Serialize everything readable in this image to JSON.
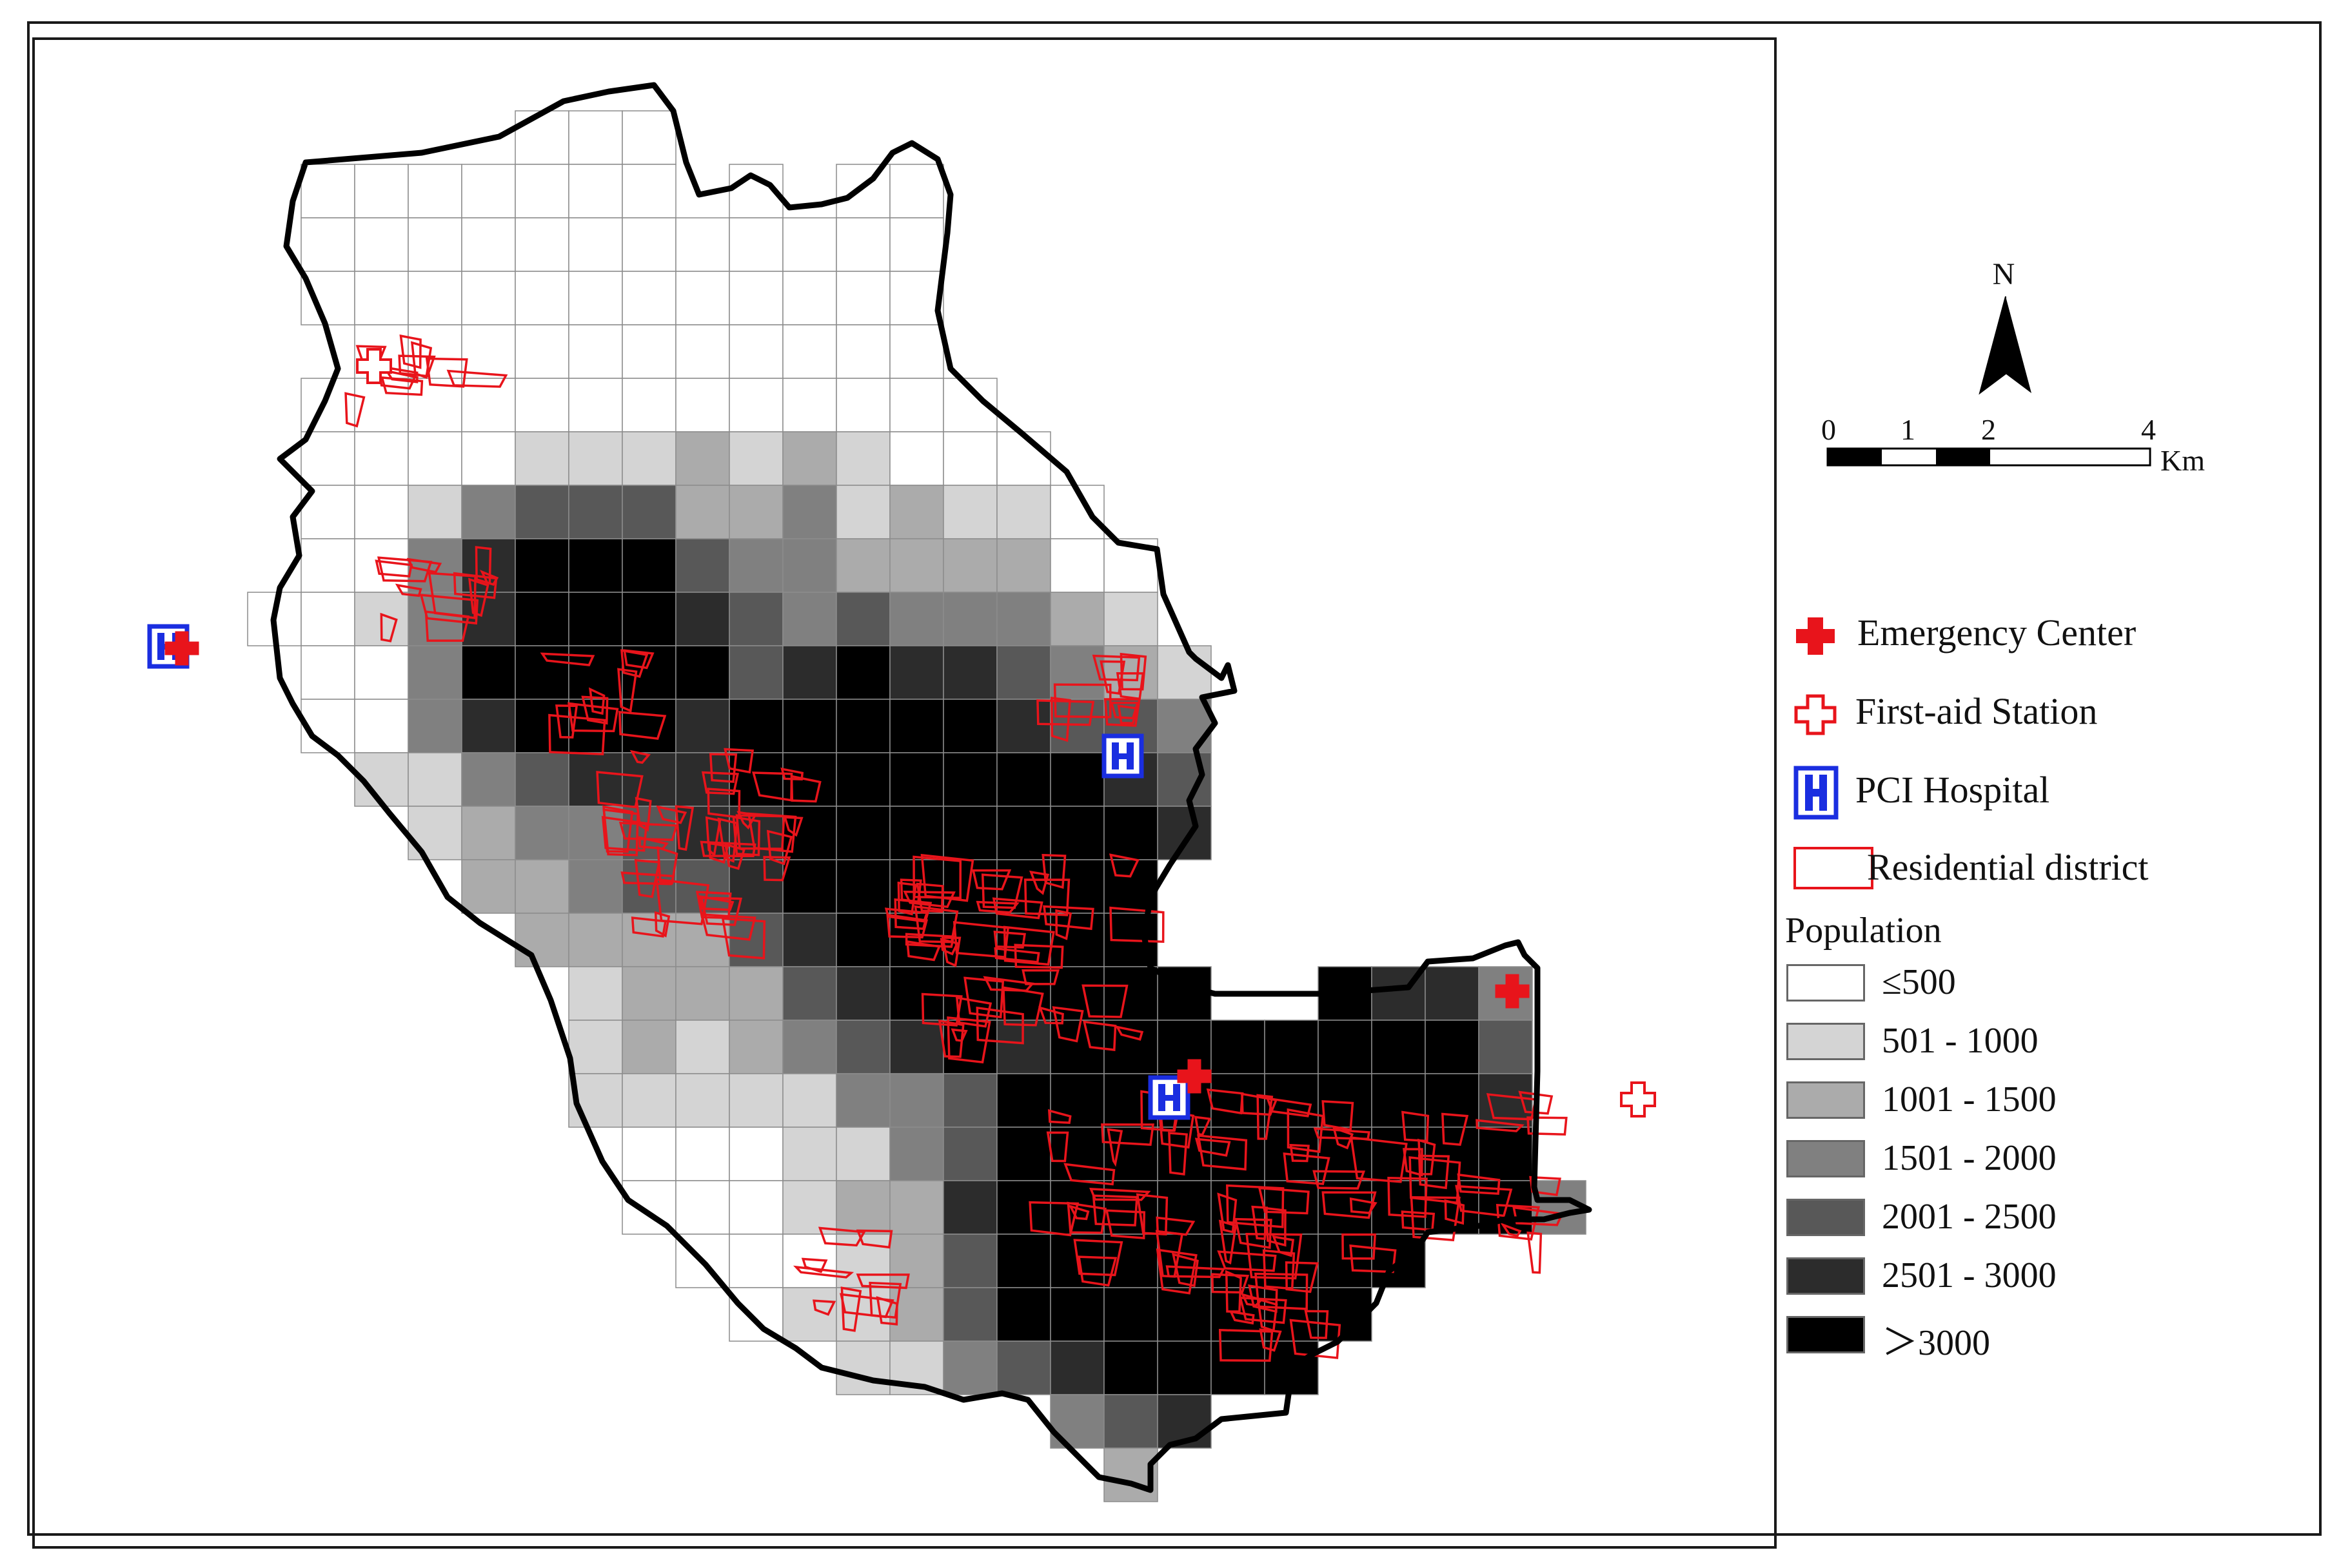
{
  "legend": {
    "items": [
      {
        "label": "Emergency Center",
        "symbol": "emergency-center-icon",
        "color": "#e8141b"
      },
      {
        "label": "First-aid Station",
        "symbol": "first-aid-station-icon",
        "color": "#e8141b"
      },
      {
        "label": "PCI Hospital",
        "symbol": "pci-hospital-icon",
        "color": "#1a2ee0"
      },
      {
        "label": "Residential district",
        "symbol": "residential-district-icon",
        "color": "#e8141b"
      }
    ],
    "population": {
      "title": "Population",
      "classes": [
        {
          "label": "≤500",
          "color": "#ffffff"
        },
        {
          "label": "501 - 1000",
          "color": "#d4d4d4"
        },
        {
          "label": "1001 - 1500",
          "color": "#ababab"
        },
        {
          "label": "1501 - 2000",
          "color": "#808080"
        },
        {
          "label": "2001 - 2500",
          "color": "#585858"
        },
        {
          "label": "2501 - 3000",
          "color": "#2c2c2c"
        },
        {
          "label": "＞3000",
          "color": "#000000"
        }
      ]
    }
  },
  "north_arrow": {
    "label": "N"
  },
  "scale_bar": {
    "ticks": [
      "0",
      "1",
      "2",
      "4"
    ],
    "unit": "Km"
  }
}
